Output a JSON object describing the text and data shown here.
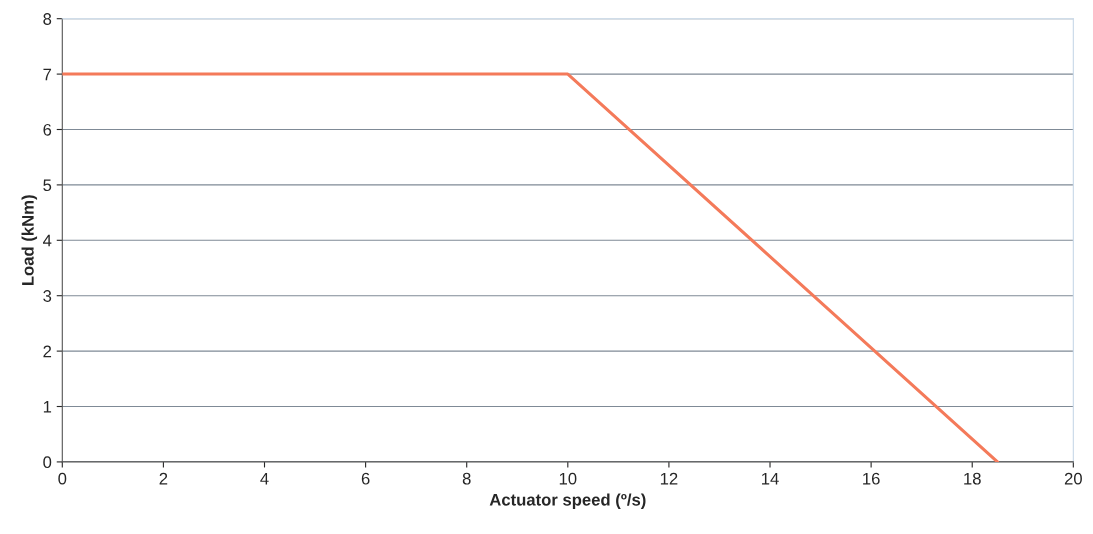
{
  "chart_data": {
    "type": "line",
    "xlabel": "Actuator speed (º/s)",
    "ylabel": "Load (kNm)",
    "series": [
      {
        "color": "#f47a5a",
        "x": [
          0,
          10,
          18.5
        ],
        "values": [
          7,
          7,
          0
        ]
      }
    ],
    "xlim": [
      0,
      20
    ],
    "xticks": [
      0,
      2,
      4,
      6,
      8,
      10,
      12,
      14,
      16,
      18,
      20
    ],
    "ylim": [
      0,
      8
    ],
    "yticks": [
      0,
      1,
      2,
      3,
      4,
      5,
      6,
      7,
      8
    ],
    "grid": "y",
    "marker": "none",
    "line_style": "solid"
  }
}
